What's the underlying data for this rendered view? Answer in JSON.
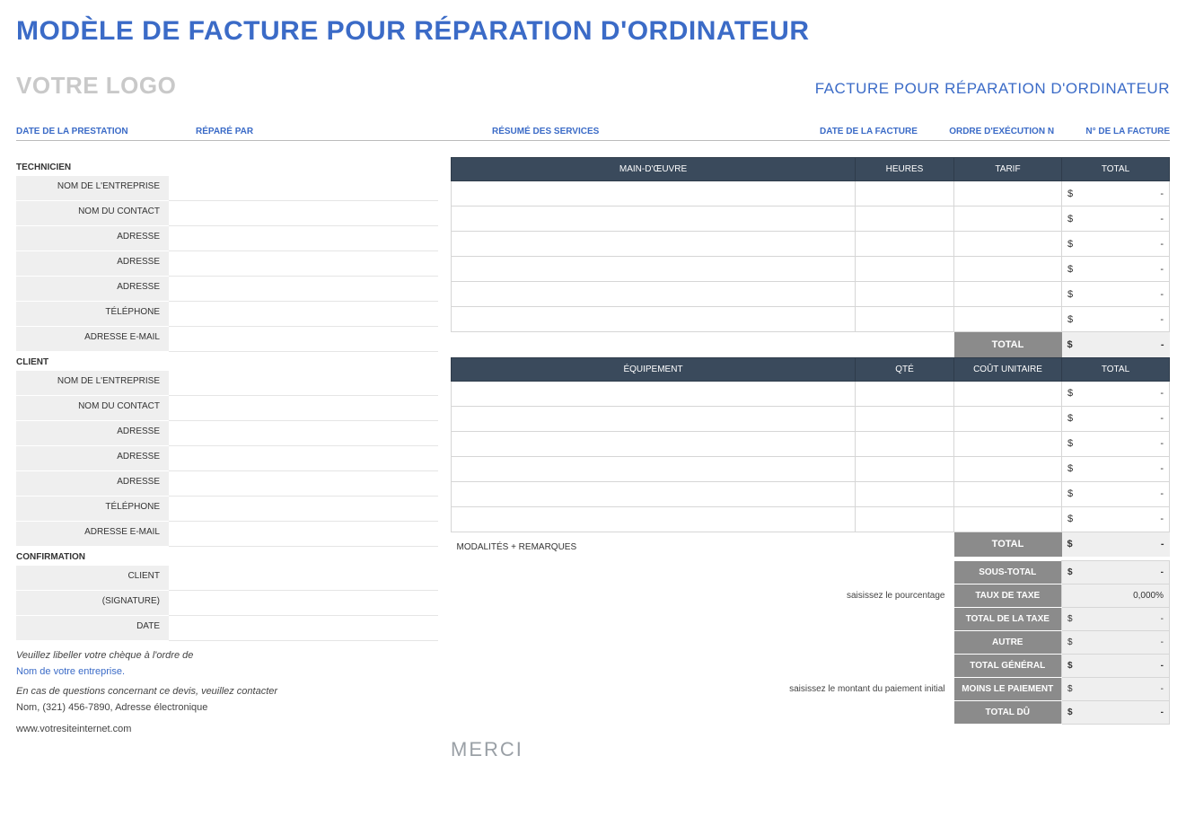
{
  "colors": {
    "primary": "#3b6bc7",
    "header_dark": "#3a4a5c",
    "grey_label": "#8b8b8b",
    "light_grey": "#efefef",
    "placeholder": "#c9c9c9",
    "merci": "#9aa0a6"
  },
  "title": "MODÈLE DE FACTURE POUR RÉPARATION D'ORDINATEUR",
  "logo_placeholder": "VOTRE LOGO",
  "subheader": "FACTURE POUR RÉPARATION D'ORDINATEUR",
  "meta": {
    "date_prestation": "DATE DE LA PRESTATION",
    "repare_par": "RÉPARÉ PAR",
    "resume_services": "RÉSUMÉ DES SERVICES",
    "date_facture": "DATE DE LA FACTURE",
    "ordre_exec": "ORDRE D'EXÉCUTION N",
    "num_facture": "N° DE LA FACTURE"
  },
  "left": {
    "technicien_title": "TECHNICIEN",
    "client_title": "CLIENT",
    "confirmation_title": "CONFIRMATION",
    "fields": {
      "company": "NOM DE L'ENTREPRISE",
      "contact": "NOM DU CONTACT",
      "address": "ADRESSE",
      "phone": "TÉLÉPHONE",
      "email": "ADRESSE E-MAIL",
      "client_sig1": "CLIENT",
      "client_sig2": "(SIGNATURE)",
      "date": "DATE"
    }
  },
  "labor": {
    "headers": {
      "desc": "MAIN-D'ŒUVRE",
      "hours": "HEURES",
      "rate": "TARIF",
      "total": "TOTAL"
    },
    "rows": 6,
    "currency": "$",
    "dash": "-",
    "total_label": "TOTAL",
    "total_value": "-"
  },
  "equip": {
    "headers": {
      "desc": "ÉQUIPEMENT",
      "qty": "QTÉ",
      "unit": "COÛT UNITAIRE",
      "total": "TOTAL"
    },
    "rows": 6,
    "currency": "$",
    "dash": "-",
    "total_label": "TOTAL",
    "total_value": "-"
  },
  "modalites_title": "MODALITÉS + REMARQUES",
  "summary": {
    "hint_pct": "saisissez le pourcentage",
    "hint_paiement": "saisissez le montant du paiement initial",
    "rows": [
      {
        "label": "SOUS-TOTAL",
        "cur": "$",
        "val": "-",
        "bold": true
      },
      {
        "label": "TAUX DE TAXE",
        "cur": "",
        "val": "0,000%",
        "right": true
      },
      {
        "label": "TOTAL DE LA TAXE",
        "cur": "$",
        "val": "-"
      },
      {
        "label": "AUTRE",
        "cur": "$",
        "val": "-"
      },
      {
        "label": "TOTAL GÉNÉRAL",
        "cur": "$",
        "val": "-",
        "bold": true
      },
      {
        "label": "MOINS LE PAIEMENT",
        "cur": "$",
        "val": "-"
      },
      {
        "label": "TOTAL DÛ",
        "cur": "$",
        "val": "-",
        "bold": true
      }
    ]
  },
  "footer": {
    "cheque_line": "Veuillez libeller votre chèque à l'ordre de",
    "company_name": "Nom de votre entreprise.",
    "contact_line": "En cas de questions concernant ce devis, veuillez contacter",
    "contact_info": "Nom, (321) 456-7890, Adresse électronique",
    "website": "www.votresiteinternet.com"
  },
  "merci": "MERCI"
}
